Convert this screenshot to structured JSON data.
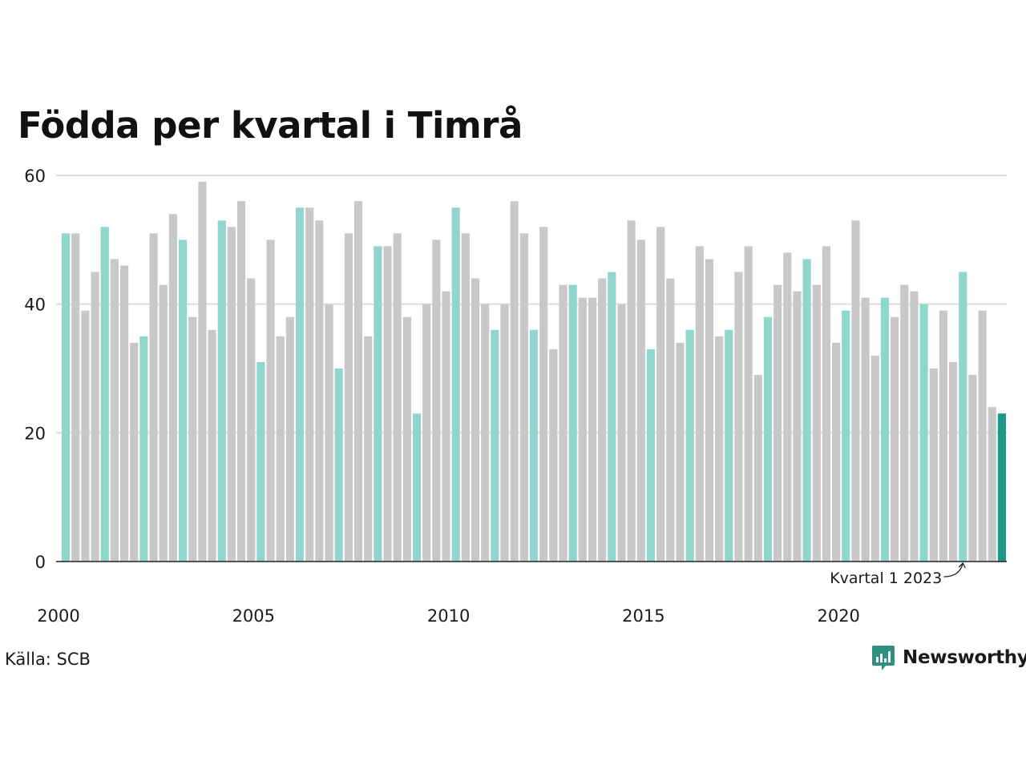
{
  "title": "Födda per kvartal i Timrå",
  "source": "Källa: SCB",
  "brand": {
    "name": "Newsworthy",
    "icon": "newsworthy-logo-icon",
    "color": "#2f8f80"
  },
  "annotation": {
    "label": "Kvartal 1 2023",
    "index": 92
  },
  "colors": {
    "bar_default": "#c8c8c8",
    "bar_q1": "#8fd6cd",
    "bar_latest": "#1a9987",
    "grid": "#dddddd",
    "axis": "#222222"
  },
  "chart_data": {
    "type": "bar",
    "title": "Födda per kvartal i Timrå",
    "xlabel": "",
    "ylabel": "",
    "ylim": [
      0,
      60
    ],
    "yticks": [
      0,
      20,
      40,
      60
    ],
    "xticks": [
      {
        "label": "2000",
        "index": 0
      },
      {
        "label": "2005",
        "index": 20
      },
      {
        "label": "2010",
        "index": 40
      },
      {
        "label": "2015",
        "index": 60
      },
      {
        "label": "2020",
        "index": 80
      }
    ],
    "start": "2000 Q1",
    "highlight": "first quarter of each year",
    "values": [
      51,
      51,
      39,
      45,
      52,
      47,
      46,
      34,
      35,
      51,
      43,
      54,
      50,
      38,
      59,
      36,
      53,
      52,
      56,
      44,
      31,
      50,
      35,
      38,
      55,
      55,
      53,
      40,
      30,
      51,
      56,
      35,
      49,
      49,
      51,
      38,
      23,
      40,
      50,
      42,
      55,
      51,
      44,
      40,
      36,
      40,
      56,
      51,
      36,
      52,
      33,
      43,
      43,
      41,
      41,
      44,
      45,
      40,
      53,
      50,
      33,
      52,
      44,
      34,
      36,
      49,
      47,
      35,
      36,
      45,
      49,
      29,
      38,
      43,
      48,
      42,
      47,
      43,
      49,
      34,
      39,
      53,
      41,
      32,
      41,
      38,
      43,
      42,
      40,
      30,
      39,
      31,
      45,
      29,
      39,
      24,
      23
    ]
  }
}
